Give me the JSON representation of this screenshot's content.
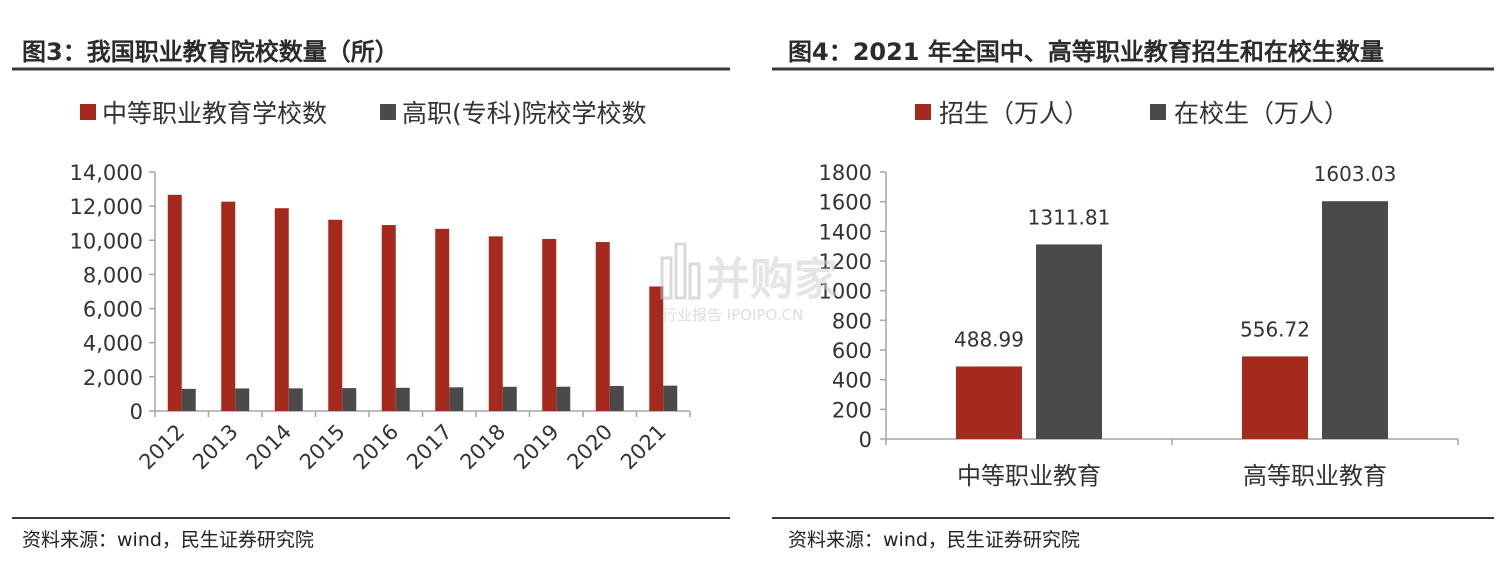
{
  "colors": {
    "red": "#a52a1d",
    "dark": "#4a4a4a",
    "rule": "#3a3a3a",
    "axis": "#a6a6a6"
  },
  "watermark": {
    "main": "并购家",
    "sub": "行业报告 IPOIPO.CN"
  },
  "chart_data": [
    {
      "type": "bar",
      "title": "图3：我国职业教育院校数量（所）",
      "source": "资料来源：wind，民生证券研究院",
      "categories": [
        "2012",
        "2013",
        "2014",
        "2015",
        "2016",
        "2017",
        "2018",
        "2019",
        "2020",
        "2021"
      ],
      "series": [
        {
          "name": "中等职业教育学校数",
          "color": "#a52a1d",
          "values": [
            12663,
            12262,
            11878,
            11202,
            10893,
            10671,
            10229,
            10078,
            9896,
            7294
          ]
        },
        {
          "name": "高职(专科)院校学校数",
          "color": "#4a4a4a",
          "values": [
            1297,
            1321,
            1327,
            1341,
            1359,
            1388,
            1418,
            1423,
            1468,
            1486
          ]
        }
      ],
      "ylim": [
        0,
        14000
      ],
      "yticks": [
        0,
        2000,
        4000,
        6000,
        8000,
        10000,
        12000,
        14000
      ],
      "ytick_labels": [
        "0",
        "2,000",
        "4,000",
        "6,000",
        "8,000",
        "10,000",
        "12,000",
        "14,000"
      ],
      "legend": "top",
      "grid": false
    },
    {
      "type": "bar",
      "title": "图4：2021 年全国中、高等职业教育招生和在校生数量",
      "source": "资料来源：wind，民生证券研究院",
      "categories": [
        "中等职业教育",
        "高等职业教育"
      ],
      "series": [
        {
          "name": "招生（万人）",
          "color": "#a52a1d",
          "values": [
            488.99,
            556.72
          ],
          "labels": [
            "488.99",
            "556.72"
          ]
        },
        {
          "name": "在校生（万人）",
          "color": "#4a4a4a",
          "values": [
            1311.81,
            1603.03
          ],
          "labels": [
            "1311.81",
            "1603.03"
          ]
        }
      ],
      "ylim": [
        0,
        1800
      ],
      "yticks": [
        0,
        200,
        400,
        600,
        800,
        1000,
        1200,
        1400,
        1600,
        1800
      ],
      "ytick_labels": [
        "0",
        "200",
        "400",
        "600",
        "800",
        "1000",
        "1200",
        "1400",
        "1600",
        "1800"
      ],
      "legend": "top",
      "grid": false
    }
  ]
}
